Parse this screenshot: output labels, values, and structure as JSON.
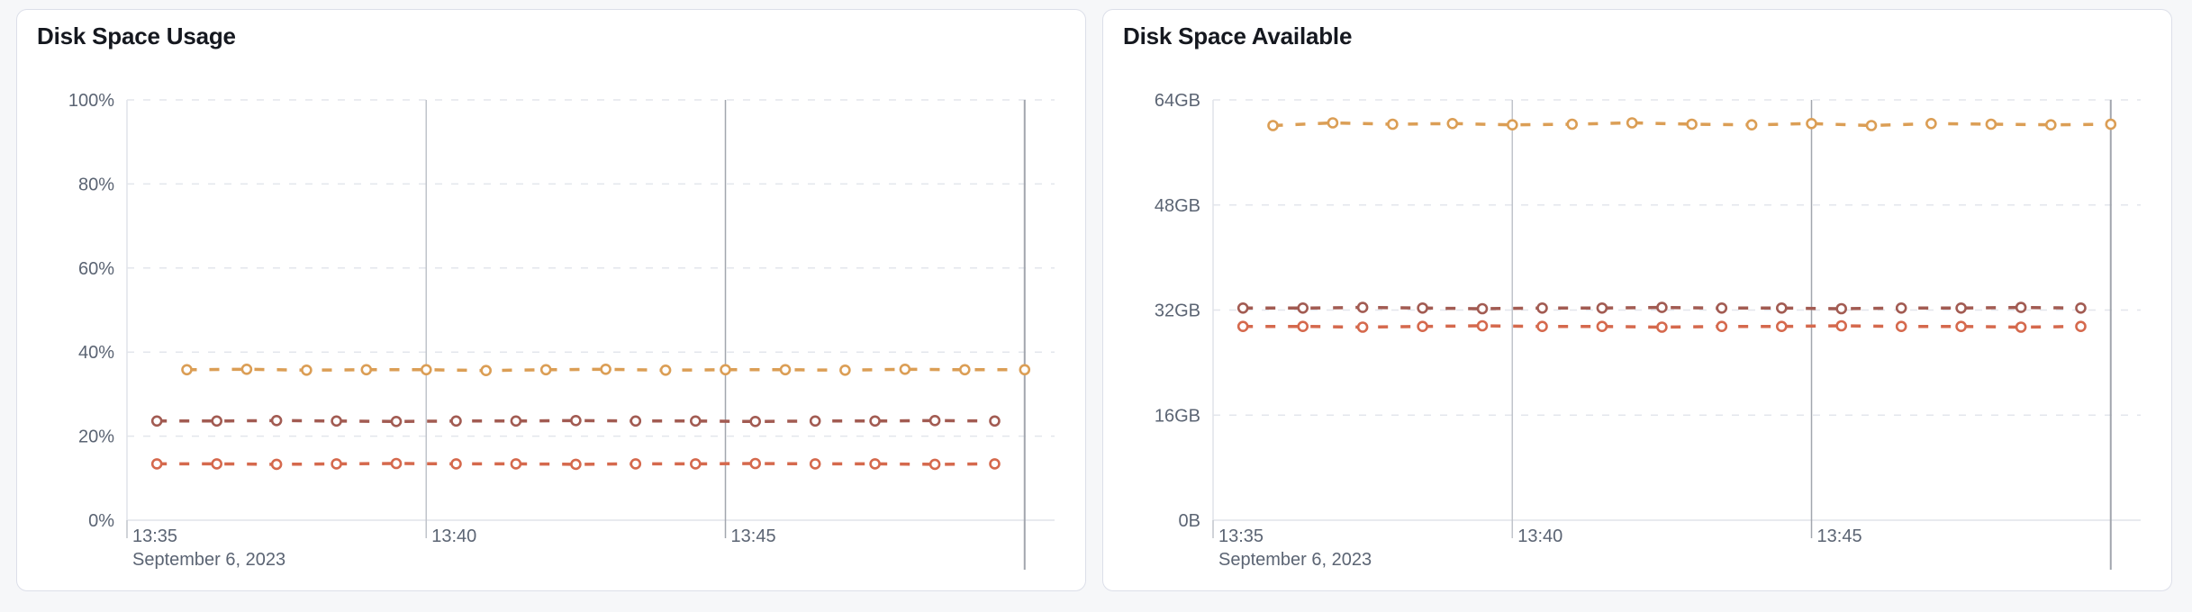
{
  "page": {
    "background_color": "#f6f7f9",
    "card_border_color": "#dcdfe9"
  },
  "chart_data": [
    {
      "type": "line",
      "title": "Disk Space Usage",
      "legend": "none",
      "grid": "dashed-horizontal",
      "y_axis": {
        "min": 0,
        "max": 100,
        "ticks": [
          {
            "value": 100,
            "label": "100%"
          },
          {
            "value": 80,
            "label": "80%"
          },
          {
            "value": 60,
            "label": "60%"
          },
          {
            "value": 40,
            "label": "40%"
          },
          {
            "value": 20,
            "label": "20%"
          },
          {
            "value": 0,
            "label": "0%"
          }
        ]
      },
      "x_axis": {
        "min_seconds": 0,
        "max_seconds": 930,
        "date_label": "September 6, 2023",
        "ticks": [
          {
            "seconds": 0,
            "label": "13:35",
            "line": "none"
          },
          {
            "seconds": 300,
            "label": "13:40",
            "line": "light"
          },
          {
            "seconds": 600,
            "label": "13:45",
            "line": "dark"
          },
          {
            "seconds": 900,
            "label": "",
            "line": "dark-long"
          }
        ]
      },
      "series": [
        {
          "name": "series-1",
          "color": "#DB9E55",
          "marker": "hollow-circle",
          "start_seconds": 60,
          "interval_seconds": 60,
          "values": [
            35.8,
            35.9,
            35.7,
            35.8,
            35.8,
            35.6,
            35.8,
            35.9,
            35.7,
            35.8,
            35.8,
            35.7,
            35.9,
            35.8,
            35.8
          ]
        },
        {
          "name": "series-2",
          "color": "#A25B52",
          "marker": "hollow-circle",
          "start_seconds": 30,
          "interval_seconds": 60,
          "values": [
            23.6,
            23.6,
            23.7,
            23.6,
            23.5,
            23.6,
            23.6,
            23.7,
            23.6,
            23.6,
            23.5,
            23.6,
            23.6,
            23.7,
            23.6
          ]
        },
        {
          "name": "series-3",
          "color": "#D5694D",
          "marker": "hollow-circle",
          "start_seconds": 30,
          "interval_seconds": 60,
          "values": [
            13.4,
            13.4,
            13.3,
            13.4,
            13.5,
            13.4,
            13.4,
            13.3,
            13.4,
            13.4,
            13.5,
            13.4,
            13.4,
            13.3,
            13.4
          ]
        }
      ]
    },
    {
      "type": "line",
      "title": "Disk Space Available",
      "legend": "none",
      "grid": "dashed-horizontal",
      "y_axis": {
        "min": 0,
        "max": 64,
        "ticks": [
          {
            "value": 64,
            "label": "64GB"
          },
          {
            "value": 48,
            "label": "48GB"
          },
          {
            "value": 32,
            "label": "32GB"
          },
          {
            "value": 16,
            "label": "16GB"
          },
          {
            "value": 0,
            "label": "0B"
          }
        ]
      },
      "x_axis": {
        "min_seconds": 0,
        "max_seconds": 930,
        "date_label": "September 6, 2023",
        "ticks": [
          {
            "seconds": 0,
            "label": "13:35",
            "line": "none"
          },
          {
            "seconds": 300,
            "label": "13:40",
            "line": "light"
          },
          {
            "seconds": 600,
            "label": "13:45",
            "line": "dark"
          },
          {
            "seconds": 900,
            "label": "",
            "line": "dark-long"
          }
        ]
      },
      "series": [
        {
          "name": "series-1",
          "color": "#DB9E55",
          "marker": "hollow-circle",
          "start_seconds": 60,
          "interval_seconds": 60,
          "values": [
            60.1,
            60.5,
            60.3,
            60.4,
            60.2,
            60.3,
            60.5,
            60.3,
            60.2,
            60.4,
            60.1,
            60.4,
            60.3,
            60.2,
            60.3
          ]
        },
        {
          "name": "series-2",
          "color": "#A25B52",
          "marker": "hollow-circle",
          "start_seconds": 30,
          "interval_seconds": 60,
          "values": [
            32.3,
            32.3,
            32.4,
            32.3,
            32.2,
            32.3,
            32.3,
            32.4,
            32.3,
            32.3,
            32.2,
            32.3,
            32.3,
            32.4,
            32.3
          ]
        },
        {
          "name": "series-3",
          "color": "#D5694D",
          "marker": "hollow-circle",
          "start_seconds": 30,
          "interval_seconds": 60,
          "values": [
            29.5,
            29.5,
            29.4,
            29.5,
            29.6,
            29.5,
            29.5,
            29.4,
            29.5,
            29.5,
            29.6,
            29.5,
            29.5,
            29.4,
            29.5
          ]
        }
      ]
    }
  ]
}
